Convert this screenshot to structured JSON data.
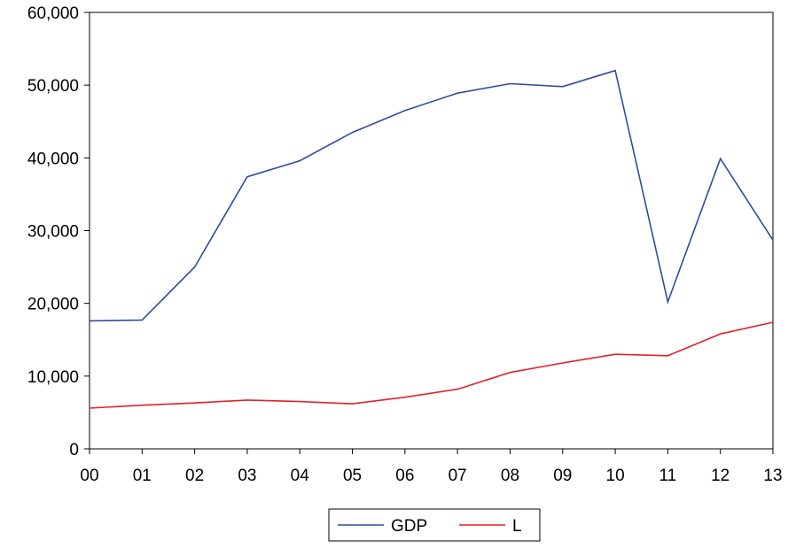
{
  "chart_data": {
    "type": "line",
    "title": "",
    "xlabel": "",
    "ylabel": "",
    "categories": [
      "00",
      "01",
      "02",
      "03",
      "04",
      "05",
      "06",
      "07",
      "08",
      "09",
      "10",
      "11",
      "12",
      "13"
    ],
    "ylim": [
      0,
      60000
    ],
    "yticks": [
      0,
      10000,
      20000,
      30000,
      40000,
      50000,
      60000
    ],
    "ytick_labels": [
      "0",
      "10,000",
      "20,000",
      "30,000",
      "40,000",
      "50,000",
      "60,000"
    ],
    "grid": false,
    "legend_position": "bottom-center",
    "series": [
      {
        "name": "GDP",
        "color": "#2e4d9a",
        "values": [
          17600,
          17700,
          25000,
          37400,
          39600,
          43500,
          46500,
          48900,
          50200,
          49800,
          52000,
          20200,
          39900,
          28700
        ]
      },
      {
        "name": "L",
        "color": "#e0222a",
        "values": [
          5600,
          6000,
          6300,
          6700,
          6500,
          6200,
          7100,
          8200,
          10500,
          11800,
          13000,
          12800,
          15800,
          17400
        ]
      }
    ]
  }
}
